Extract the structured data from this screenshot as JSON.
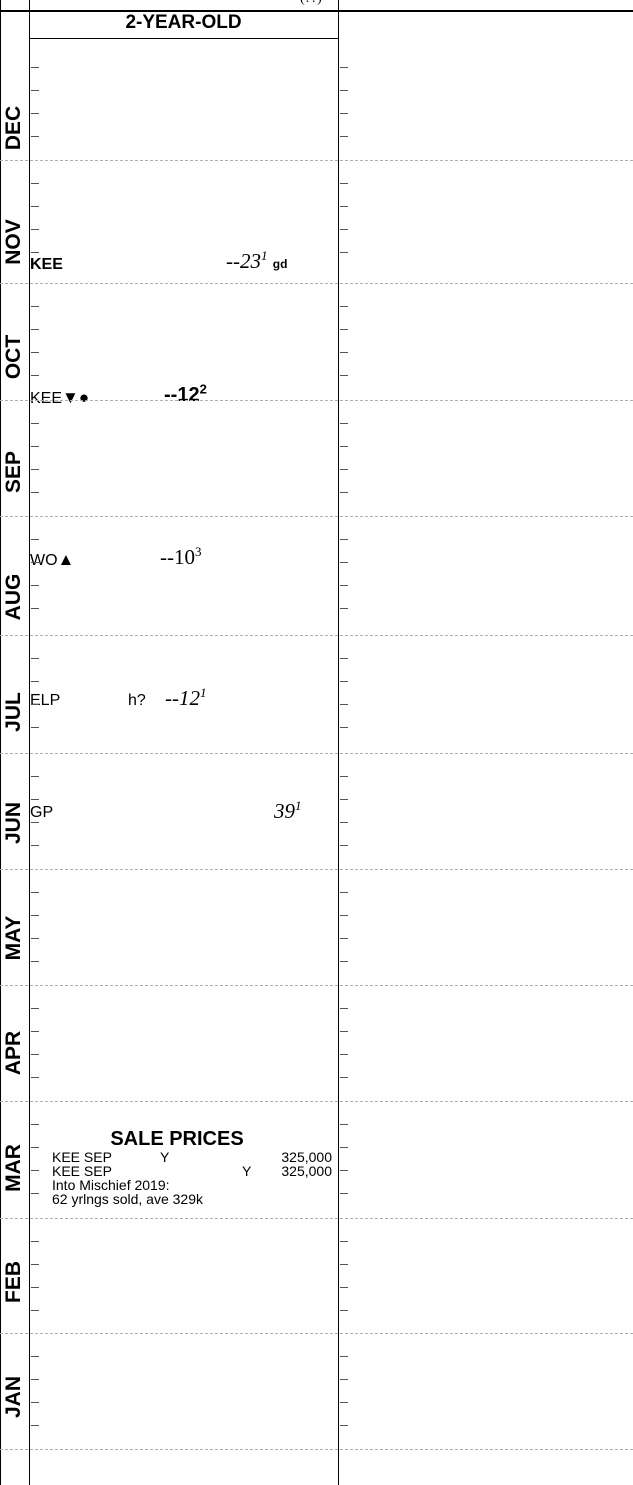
{
  "top_fragment": "(??)",
  "column_header": "2-YEAR-OLD",
  "months": [
    "DEC",
    "NOV",
    "OCT",
    "SEP",
    "AUG",
    "JUL",
    "JUN",
    "MAY",
    "APR",
    "MAR",
    "FEB",
    "JAN"
  ],
  "races": [
    {
      "month": "NOV",
      "track": "KEE",
      "symbols": "",
      "note": "",
      "figure": "--23",
      "sup": "1",
      "cond": "gd",
      "style": "italic"
    },
    {
      "month": "OCT",
      "track": "KEE",
      "symbols": "▼●",
      "note": "",
      "figure": "--12",
      "sup": "2",
      "cond": "",
      "style": "bold"
    },
    {
      "month": "AUG",
      "track": "WO",
      "symbols": "▲",
      "note": "",
      "figure": "--10",
      "sup": "3",
      "cond": "",
      "style": "upright"
    },
    {
      "month": "JUL",
      "track": "ELP",
      "symbols": "",
      "note": "h?",
      "figure": "--12",
      "sup": "1",
      "cond": "",
      "style": "italic"
    },
    {
      "month": "JUN",
      "track": "GP",
      "symbols": "",
      "note": "",
      "figure": "39",
      "sup": "1",
      "cond": "",
      "style": "italic"
    }
  ],
  "sale_prices": {
    "title": "SALE PRICES",
    "rows": [
      {
        "sale": "KEE SEP",
        "type": "Y",
        "price": "325,000"
      },
      {
        "sale": "KEE SEP",
        "type": "Y",
        "price": "325,000"
      }
    ],
    "notes": [
      "Into Mischief 2019:",
      "62 yrlngs sold, ave 329k"
    ]
  }
}
